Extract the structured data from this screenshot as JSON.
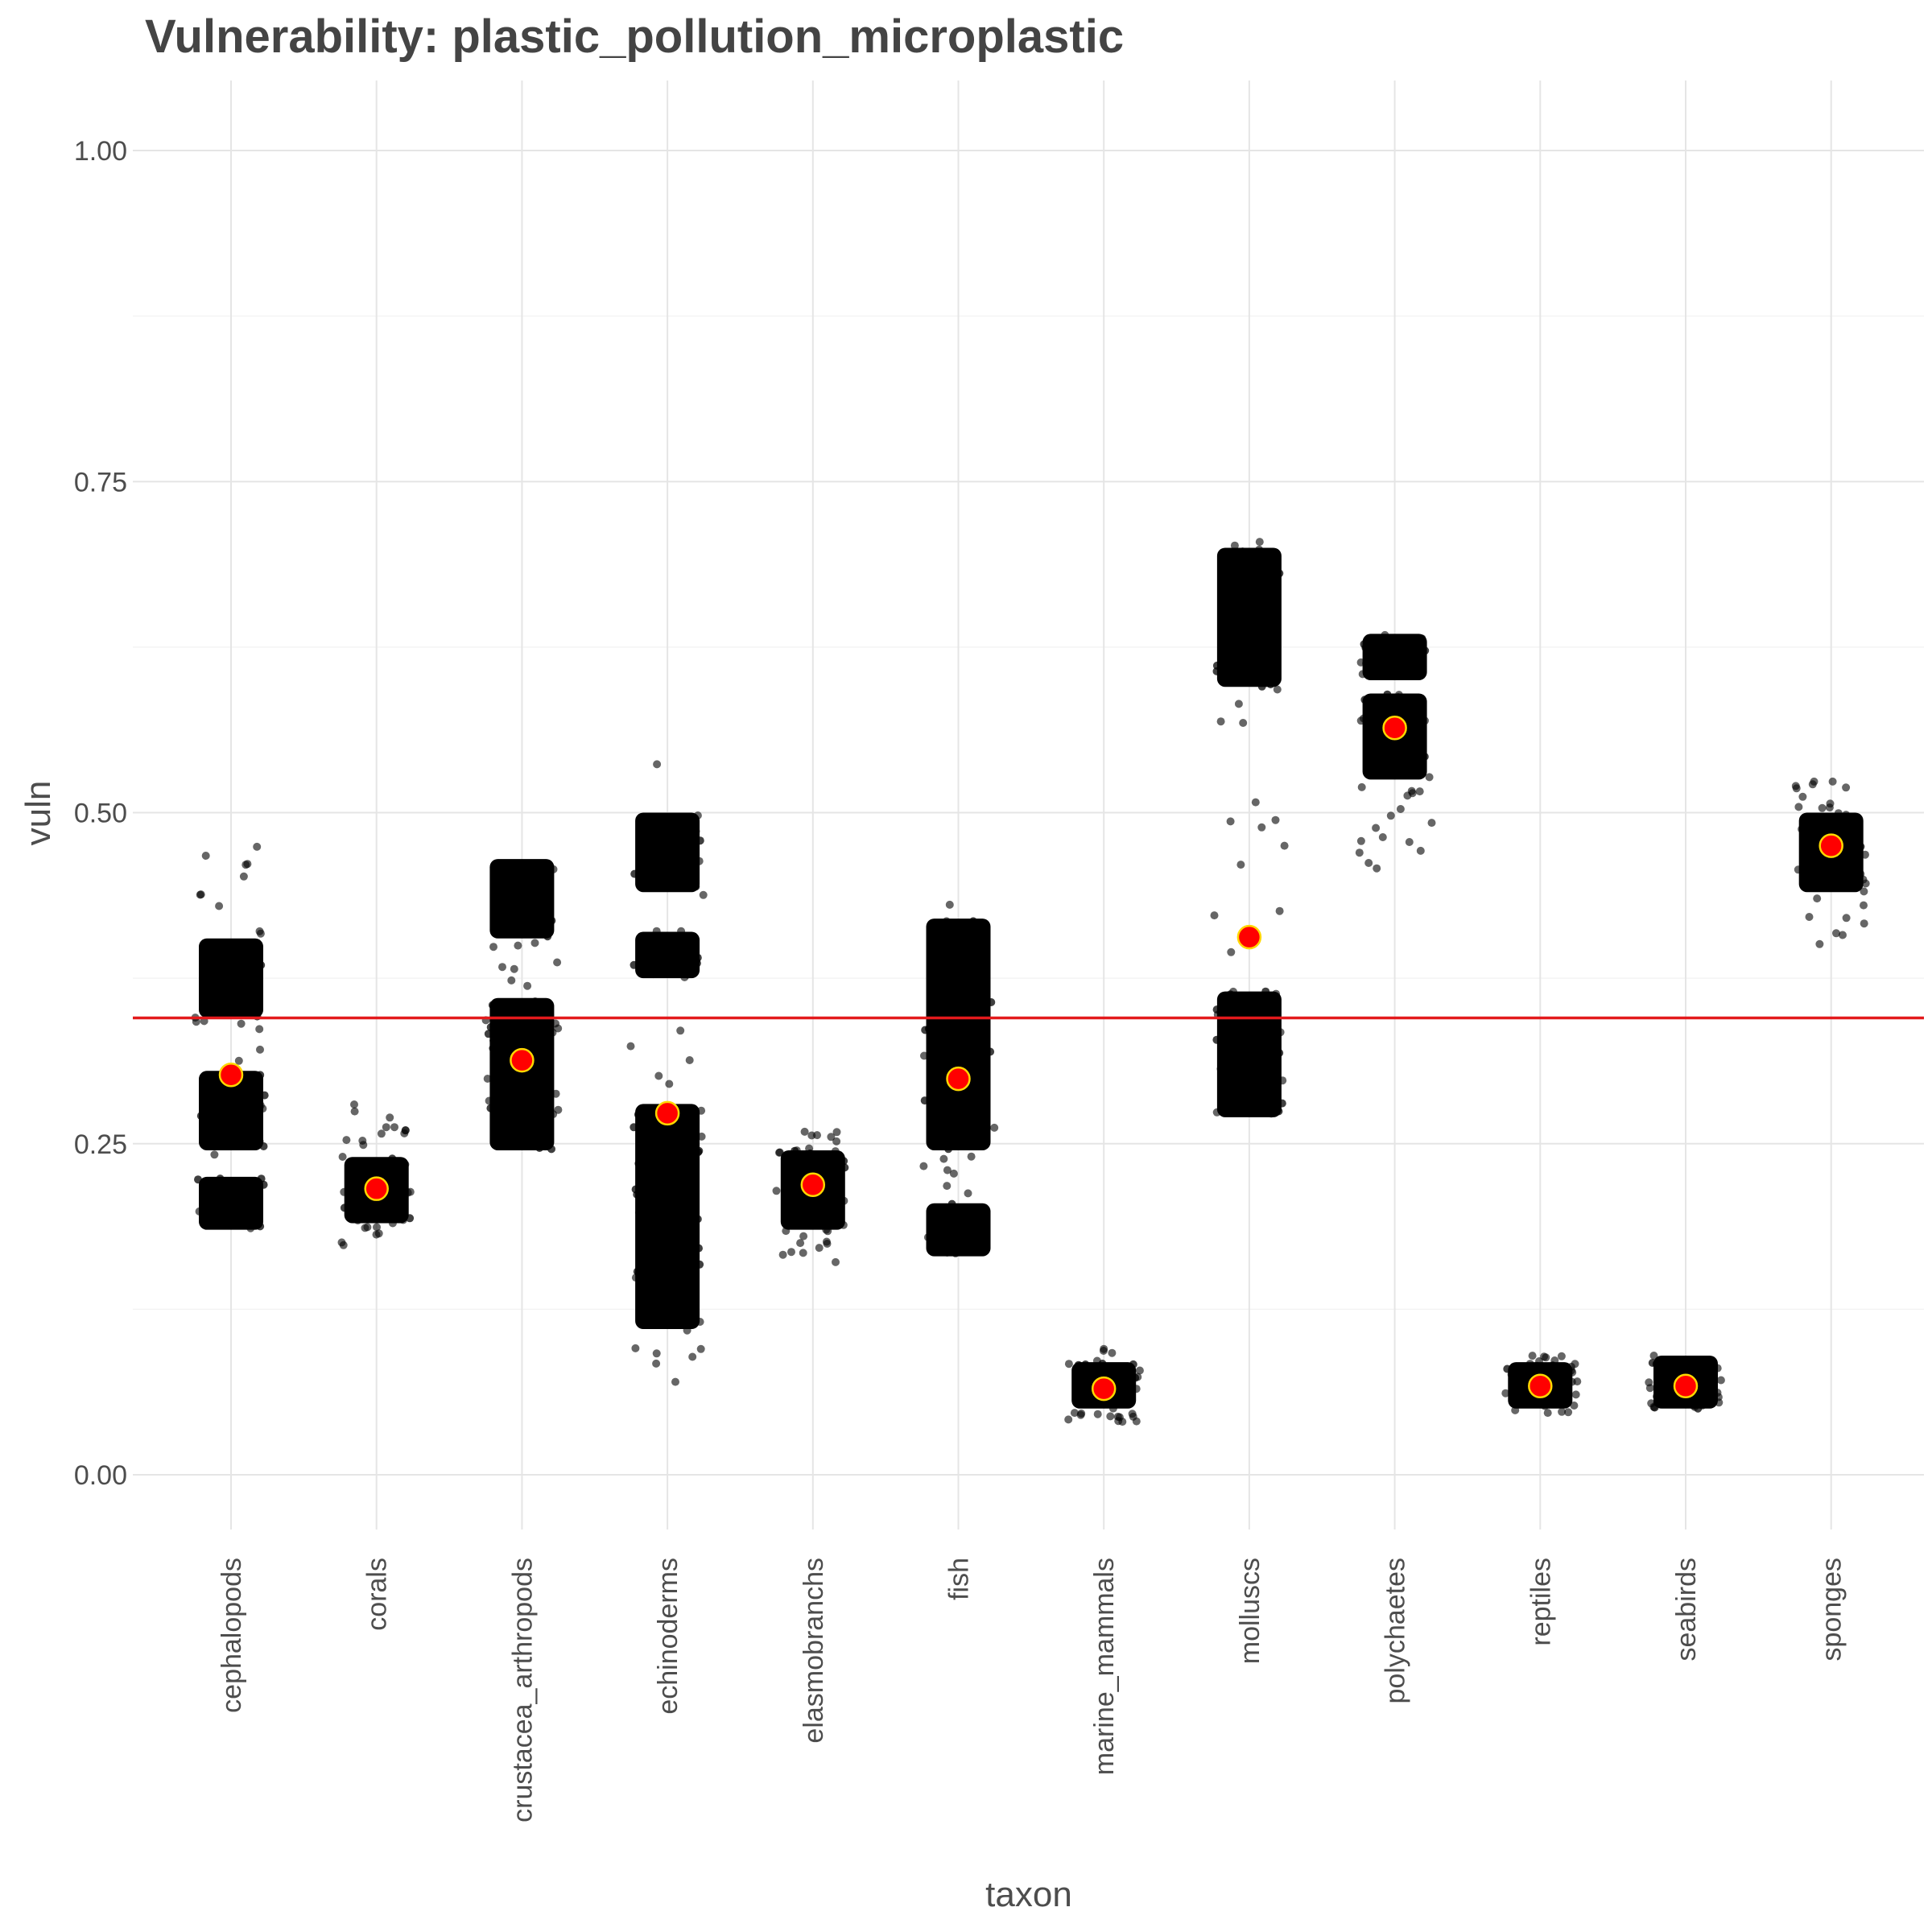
{
  "chart_data": {
    "type": "scatter",
    "title": "Vulnerability: plastic_pollution_microplastic",
    "xlabel": "taxon",
    "ylabel": "vuln",
    "ylim": [
      -0.05,
      1.05
    ],
    "yticks": [
      "0.00",
      "0.25",
      "0.50",
      "0.75",
      "1.00"
    ],
    "ytick_values": [
      0,
      0.25,
      0.5,
      0.75,
      1.0
    ],
    "grid": true,
    "categories": [
      "cephalopods",
      "corals",
      "crustacea_arthropods",
      "echinoderms",
      "elasmobranchs",
      "fish",
      "marine_mammals",
      "molluscs",
      "polychaetes",
      "reptiles",
      "seabirds",
      "sponges"
    ],
    "reference_line": {
      "y": 0.345,
      "color": "#e31a1c"
    },
    "mean_points": [
      0.302,
      0.216,
      0.313,
      0.273,
      0.219,
      0.299,
      0.065,
      0.406,
      0.564,
      0.067,
      0.067,
      0.475
    ],
    "mean_point_fill": "#ff0000",
    "mean_point_stroke": "#ffd700",
    "point_color": "#000000",
    "clusters": [
      {
        "taxon": "cephalopods",
        "bands": [
          [
            0.185,
            0.225
          ],
          [
            0.245,
            0.305
          ],
          [
            0.345,
            0.405
          ]
        ],
        "outlier_range": [
          0.18,
          0.475
        ]
      },
      {
        "taxon": "corals",
        "bands": [
          [
            0.19,
            0.24
          ]
        ],
        "outlier_range": [
          0.17,
          0.28
        ]
      },
      {
        "taxon": "crustacea_arthropods",
        "bands": [
          [
            0.245,
            0.36
          ],
          [
            0.405,
            0.465
          ]
        ],
        "outlier_range": [
          0.245,
          0.465
        ]
      },
      {
        "taxon": "echinoderms",
        "bands": [
          [
            0.11,
            0.28
          ],
          [
            0.375,
            0.41
          ],
          [
            0.44,
            0.5
          ]
        ],
        "outlier_range": [
          0.05,
          0.54
        ]
      },
      {
        "taxon": "elasmobranchs",
        "bands": [
          [
            0.185,
            0.245
          ]
        ],
        "outlier_range": [
          0.155,
          0.26
        ]
      },
      {
        "taxon": "fish",
        "bands": [
          [
            0.165,
            0.205
          ],
          [
            0.245,
            0.42
          ]
        ],
        "outlier_range": [
          0.165,
          0.435
        ]
      },
      {
        "taxon": "marine_mammals",
        "bands": [
          [
            0.05,
            0.085
          ]
        ],
        "outlier_range": [
          0.04,
          0.095
        ]
      },
      {
        "taxon": "molluscs",
        "bands": [
          [
            0.27,
            0.365
          ],
          [
            0.595,
            0.7
          ]
        ],
        "outlier_range": [
          0.27,
          0.725
        ]
      },
      {
        "taxon": "polychaetes",
        "bands": [
          [
            0.525,
            0.59
          ],
          [
            0.6,
            0.635
          ]
        ],
        "outlier_range": [
          0.455,
          0.635
        ]
      },
      {
        "taxon": "reptiles",
        "bands": [
          [
            0.05,
            0.085
          ]
        ],
        "outlier_range": [
          0.045,
          0.09
        ]
      },
      {
        "taxon": "seabirds",
        "bands": [
          [
            0.05,
            0.09
          ]
        ],
        "outlier_range": [
          0.05,
          0.09
        ]
      },
      {
        "taxon": "sponges",
        "bands": [
          [
            0.44,
            0.5
          ]
        ],
        "outlier_range": [
          0.4,
          0.53
        ]
      }
    ]
  }
}
